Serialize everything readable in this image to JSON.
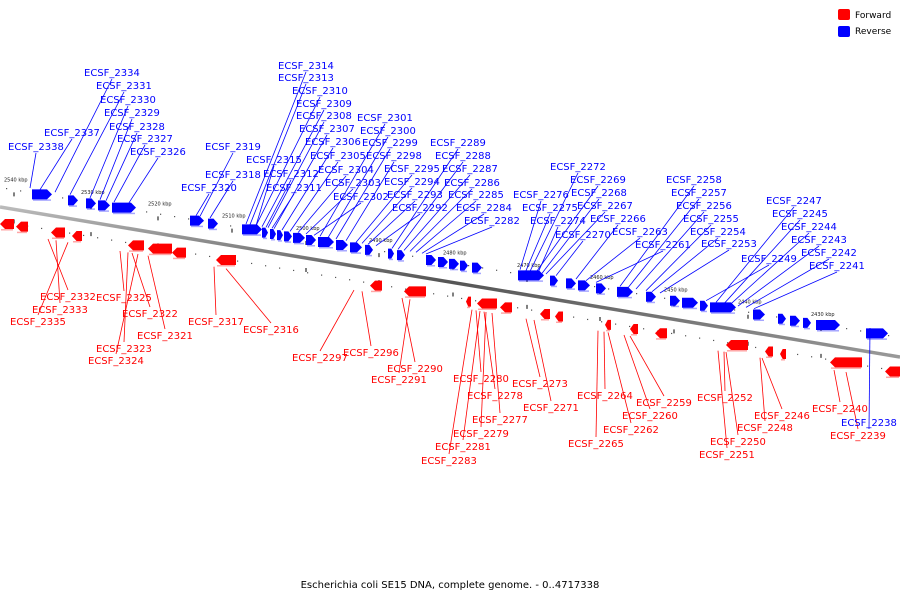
{
  "caption": "Escherichia coli SE15 DNA, complete genome. - 0..4717338",
  "legend": [
    {
      "label": "Forward",
      "color": "#ff0000"
    },
    {
      "label": "Reverse",
      "color": "#0000ff"
    }
  ],
  "colors": {
    "forward": "#ff0000",
    "reverse": "#0000ff",
    "backbone": "#666666"
  },
  "ticks": [
    "2540 kbp",
    "2530 kbp",
    "2520 kbp",
    "2510 kbp",
    "2500 kbp",
    "2490 kbp",
    "2480 kbp",
    "2470 kbp",
    "2460 kbp",
    "2450 kbp",
    "2440 kbp",
    "2430 kbp"
  ],
  "forward_genes": [
    "ECSF_2332",
    "ECSF_2333",
    "ECSF_2335",
    "ECSF_2325",
    "ECSF_2322",
    "ECSF_2323",
    "ECSF_2324",
    "ECSF_2321",
    "ECSF_2317",
    "ECSF_2316",
    "ECSF_2297",
    "ECSF_2296",
    "ECSF_2290",
    "ECSF_2291",
    "ECSF_2280",
    "ECSF_2278",
    "ECSF_2277",
    "ECSF_2279",
    "ECSF_2281",
    "ECSF_2283",
    "ECSF_2273",
    "ECSF_2271",
    "ECSF_2264",
    "ECSF_2265",
    "ECSF_2262",
    "ECSF_2260",
    "ECSF_2259",
    "ECSF_2252",
    "ECSF_2250",
    "ECSF_2251",
    "ECSF_2246",
    "ECSF_2248",
    "ECSF_2240",
    "ECSF_2239"
  ],
  "reverse_genes": [
    "ECSF_2334",
    "ECSF_2331",
    "ECSF_2330",
    "ECSF_2329",
    "ECSF_2328",
    "ECSF_2327",
    "ECSF_2326",
    "ECSF_2337",
    "ECSF_2338",
    "ECSF_2319",
    "ECSF_2318",
    "ECSF_2320",
    "ECSF_2314",
    "ECSF_2313",
    "ECSF_2310",
    "ECSF_2309",
    "ECSF_2308",
    "ECSF_2307",
    "ECSF_2306",
    "ECSF_2305",
    "ECSF_2304",
    "ECSF_2303",
    "ECSF_2302",
    "ECSF_2315",
    "ECSF_2312",
    "ECSF_2311",
    "ECSF_2301",
    "ECSF_2300",
    "ECSF_2299",
    "ECSF_2298",
    "ECSF_2295",
    "ECSF_2294",
    "ECSF_2293",
    "ECSF_2292",
    "ECSF_2289",
    "ECSF_2288",
    "ECSF_2287",
    "ECSF_2286",
    "ECSF_2285",
    "ECSF_2284",
    "ECSF_2282",
    "ECSF_2272",
    "ECSF_2269",
    "ECSF_2268",
    "ECSF_2267",
    "ECSF_2276",
    "ECSF_2275",
    "ECSF_2274",
    "ECSF_2270",
    "ECSF_2266",
    "ECSF_2263",
    "ECSF_2261",
    "ECSF_2258",
    "ECSF_2257",
    "ECSF_2256",
    "ECSF_2255",
    "ECSF_2254",
    "ECSF_2253",
    "ECSF_2249",
    "ECSF_2247",
    "ECSF_2245",
    "ECSF_2244",
    "ECSF_2243",
    "ECSF_2242",
    "ECSF_2241",
    "ECSF_2238"
  ]
}
